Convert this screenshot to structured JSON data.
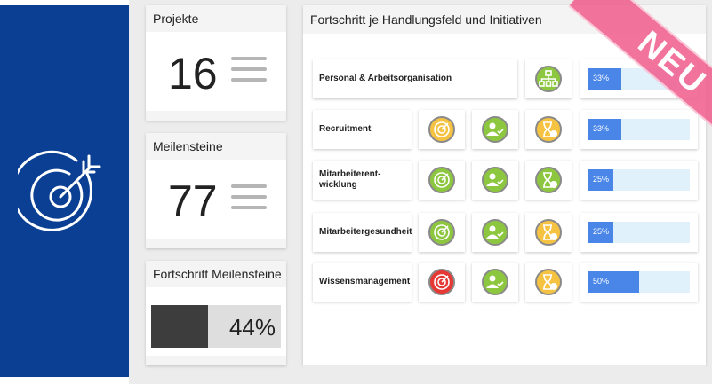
{
  "cards": {
    "projekte": {
      "title": "Projekte",
      "value": "16"
    },
    "meilensteine": {
      "title": "Meilensteine",
      "value": "77"
    },
    "fortschritt": {
      "title": "Fortschritt Meilensteine",
      "value": "44%",
      "progress": 0.44
    }
  },
  "main": {
    "title": "Fortschritt je Handlungsfeld und Initiativen",
    "ribbon": "NEU",
    "rows": [
      {
        "label": "Personal & Arbeitsorganisation",
        "progress_text": "33%",
        "progress": 0.33
      },
      {
        "label": "Recruitment",
        "progress_text": "33%",
        "progress": 0.33
      },
      {
        "label": "Mitarbeiterent-wicklung",
        "progress_text": "25%",
        "progress": 0.25
      },
      {
        "label": "Mitarbeitergesundheit",
        "progress_text": "25%",
        "progress": 0.25
      },
      {
        "label": "Wissensmanagement",
        "progress_text": "50%",
        "progress": 0.5
      }
    ]
  },
  "colors": {
    "brand_blue": "#0a3f93",
    "green": "#8dc63f",
    "yellow": "#f5c242",
    "red": "#e53935",
    "bar_blue": "#4a86e8",
    "ribbon_pink": "#f05c8c"
  },
  "icons": [
    "target-arrow-icon",
    "menu-lines-icon",
    "org-chart-icon",
    "target-icon",
    "people-check-icon",
    "hourglass-clock-icon"
  ]
}
